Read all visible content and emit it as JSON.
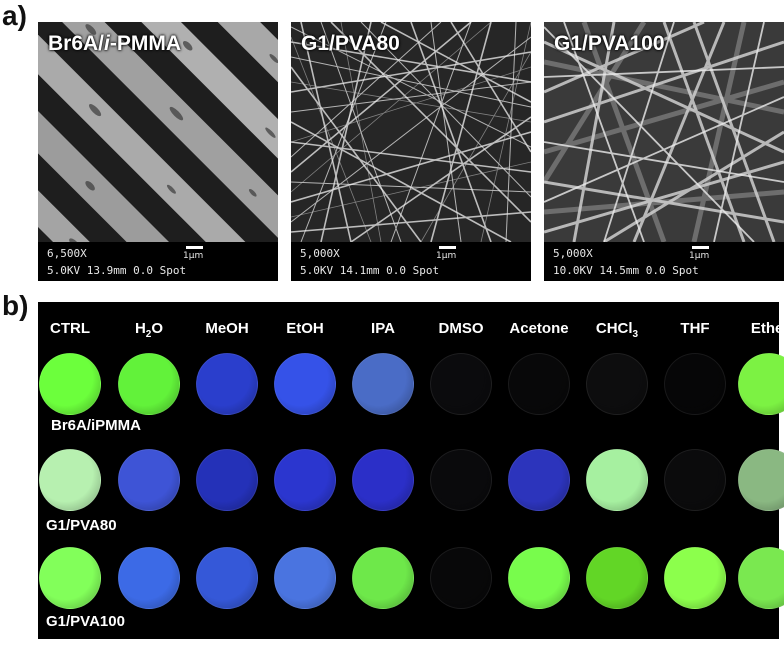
{
  "panel_a": {
    "label": "a)",
    "images": [
      {
        "title": "Br6A/i-PMMA",
        "magnification": "6,500X",
        "params": "5.0KV   13.9mm   0.0 Spot",
        "scale": "1μm"
      },
      {
        "title": "G1/PVA80",
        "magnification": "5,000X",
        "params": "5.0KV   14.1mm   0.0 Spot",
        "scale": "1μm"
      },
      {
        "title": "G1/PVA100",
        "magnification": "5,000X",
        "params": "10.0KV   14.5mm   0.0 Spot",
        "scale": "1μm"
      }
    ]
  },
  "panel_b": {
    "label": "b)",
    "columns": [
      "CTRL",
      "H2O",
      "MeOH",
      "EtOH",
      "IPA",
      "DMSO",
      "Acetone",
      "CHCl3",
      "THF",
      "Ether"
    ],
    "rows": [
      {
        "label": "Br6A/iPMMA",
        "colors": [
          "#6cff3c",
          "#62f23a",
          "#2a3ecc",
          "#3552e8",
          "#4a6cc6",
          "#0b0b0d",
          "#080809",
          "#0d0d0e",
          "#060607",
          "#7cf243"
        ]
      },
      {
        "label": "G1/PVA80",
        "colors": [
          "#b7f0b0",
          "#3e54d6",
          "#2431b8",
          "#2b36cf",
          "#2b2fc8",
          "#0a0a0c",
          "#2c34bc",
          "#a6f0a0",
          "#0b0b0c",
          "#8ab882"
        ]
      },
      {
        "label": "G1/PVA100",
        "colors": [
          "#82ff5a",
          "#3c6ae6",
          "#3558d8",
          "#4a74e0",
          "#6ee84a",
          "#080809",
          "#78fc4c",
          "#62d626",
          "#8cff4c",
          "#7ae850"
        ]
      }
    ]
  }
}
